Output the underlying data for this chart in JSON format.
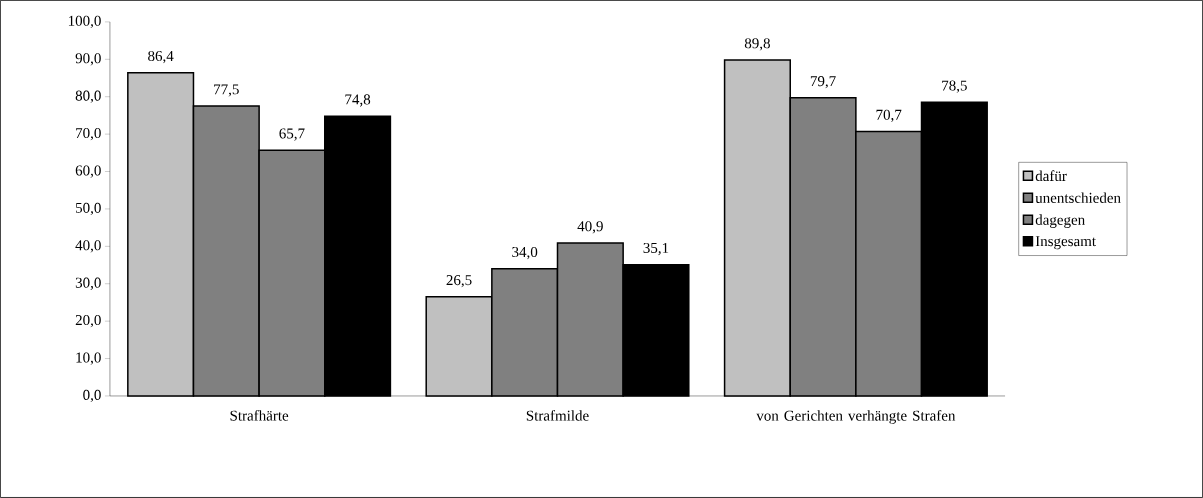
{
  "chart_data": {
    "type": "bar",
    "categories": [
      "Strafhärte",
      "Strafmilde",
      "von Gerichten verhängte Strafen"
    ],
    "series": [
      {
        "name": "dafür",
        "color": "#c0c0c0",
        "values": [
          86.4,
          26.5,
          89.8
        ],
        "value_labels": [
          "86,4",
          "26,5",
          "89,8"
        ]
      },
      {
        "name": "unentschieden",
        "color": "#808080",
        "values": [
          77.5,
          34.0,
          79.7
        ],
        "value_labels": [
          "77,5",
          "34,0",
          "79,7"
        ]
      },
      {
        "name": "dagegen",
        "color": "#808080",
        "values": [
          65.7,
          40.9,
          70.7
        ],
        "value_labels": [
          "65,7",
          "40,9",
          "70,7"
        ]
      },
      {
        "name": "Insgesamt",
        "color": "#000000",
        "values": [
          74.8,
          35.1,
          78.5
        ],
        "value_labels": [
          "74,8",
          "35,1",
          "78,5"
        ]
      }
    ],
    "ylim": [
      0,
      100
    ],
    "yticks": [
      {
        "value": 0,
        "label": "0,0"
      },
      {
        "value": 10,
        "label": "10,0"
      },
      {
        "value": 20,
        "label": "20,0"
      },
      {
        "value": 30,
        "label": "30,0"
      },
      {
        "value": 40,
        "label": "40,0"
      },
      {
        "value": 50,
        "label": "50,0"
      },
      {
        "value": 60,
        "label": "60,0"
      },
      {
        "value": 70,
        "label": "70,0"
      },
      {
        "value": 80,
        "label": "80,0"
      },
      {
        "value": 90,
        "label": "90,0"
      },
      {
        "value": 100,
        "label": "100,0"
      }
    ],
    "grid": false,
    "legend": "right"
  }
}
